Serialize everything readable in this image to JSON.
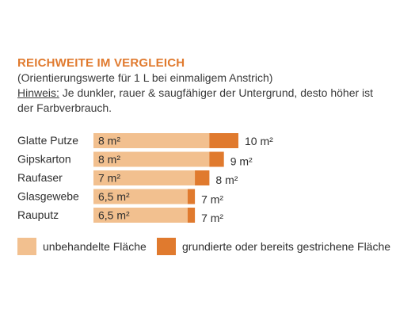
{
  "header": {
    "title": "REICHWEITE IM VERGLEICH",
    "subtitle": "(Orientierungswerte für 1 L bei einmaligem Anstrich)",
    "hint_label": "Hinweis:",
    "hint_text_line1": " Je dunkler, rauer & saugfähiger der Untergrund, desto höher ist",
    "hint_text_line2": "der Farbverbrauch."
  },
  "colors": {
    "untreated": "#f2c08f",
    "primed": "#e07a2e",
    "title": "#e07a2e"
  },
  "chart_data": {
    "type": "bar",
    "orientation": "horizontal",
    "stacked_overlay": true,
    "categories": [
      "Glatte Putze",
      "Gipskarton",
      "Raufaser",
      "Glasgewebe",
      "Rauputz"
    ],
    "unit": "m²",
    "series": [
      {
        "name": "unbehandelte Fläche",
        "values": [
          8,
          8,
          7,
          6.5,
          6.5
        ],
        "labels": [
          "8 m²",
          "8 m²",
          "7 m²",
          "6,5 m²",
          "6,5 m²"
        ]
      },
      {
        "name": "grundierte oder bereits gestrichene Fläche",
        "values": [
          10,
          9,
          8,
          7,
          7
        ],
        "labels": [
          "10 m²",
          "9 m²",
          "8 m²",
          "7 m²",
          "7 m²"
        ]
      }
    ],
    "legend_position": "bottom",
    "grid": false
  },
  "legend": {
    "untreated_label": "unbehandelte Fläche",
    "primed_label": "grundierte oder bereits gestrichene Fläche"
  }
}
